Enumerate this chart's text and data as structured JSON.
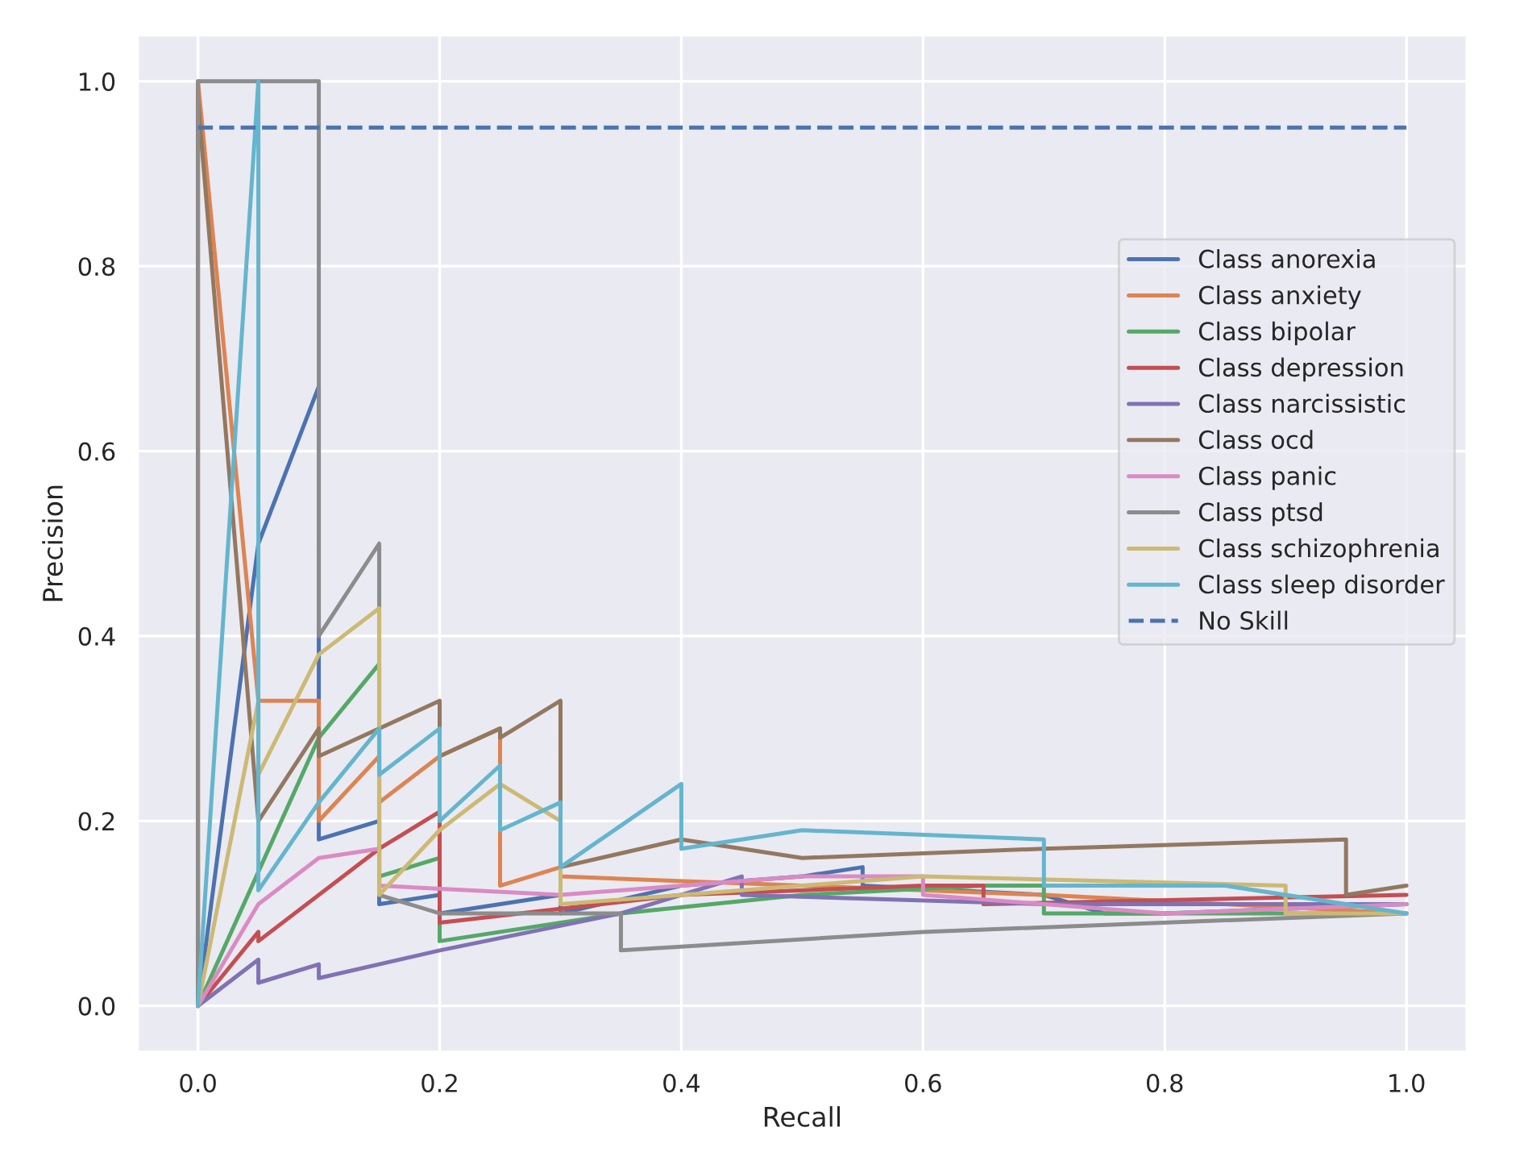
{
  "chart_data": {
    "type": "line",
    "xlabel": "Recall",
    "ylabel": "Precision",
    "xlim": [
      -0.05,
      1.05
    ],
    "ylim": [
      -0.05,
      1.05
    ],
    "xticks": [
      {
        "value": 0,
        "label": "0.0"
      },
      {
        "value": 0.2,
        "label": "0.2"
      },
      {
        "value": 0.4,
        "label": "0.4"
      },
      {
        "value": 0.6,
        "label": "0.6"
      },
      {
        "value": 0.8,
        "label": "0.8"
      },
      {
        "value": 1,
        "label": "1.0"
      }
    ],
    "yticks": [
      {
        "value": 0,
        "label": "0.0"
      },
      {
        "value": 0.2,
        "label": "0.2"
      },
      {
        "value": 0.4,
        "label": "0.4"
      },
      {
        "value": 0.6,
        "label": "0.6"
      },
      {
        "value": 0.8,
        "label": "0.8"
      },
      {
        "value": 1,
        "label": "1.0"
      }
    ],
    "grid": true,
    "legend": "right",
    "marker": "none",
    "series": [
      {
        "name": "Class anorexia",
        "color": "#4c72b0",
        "x": [
          0,
          0.05,
          0.1,
          0.1,
          0.15,
          0.15,
          0.2,
          0.2,
          0.3,
          0.3,
          0.4,
          0.5,
          0.55,
          0.55,
          0.7,
          0.75,
          0.8,
          1.0
        ],
        "values": [
          0,
          0.5,
          0.67,
          0.18,
          0.2,
          0.11,
          0.12,
          0.1,
          0.12,
          0.1,
          0.13,
          0.14,
          0.15,
          0.13,
          0.12,
          0.1,
          0.1,
          0.11
        ]
      },
      {
        "name": "Class anxiety",
        "color": "#dd8452",
        "x": [
          0,
          0,
          0.05,
          0.1,
          0.1,
          0.15,
          0.15,
          0.2,
          0.25,
          0.25,
          0.3,
          0.3,
          0.5,
          0.7,
          1.0
        ],
        "values": [
          0,
          1.0,
          0.33,
          0.33,
          0.2,
          0.27,
          0.22,
          0.27,
          0.3,
          0.13,
          0.15,
          0.14,
          0.13,
          0.12,
          0.1
        ]
      },
      {
        "name": "Class bipolar",
        "color": "#55a868",
        "x": [
          0,
          0.1,
          0.15,
          0.15,
          0.2,
          0.2,
          0.35,
          0.5,
          0.65,
          0.7,
          0.7,
          1.0
        ],
        "values": [
          0,
          0.29,
          0.37,
          0.14,
          0.16,
          0.07,
          0.1,
          0.12,
          0.13,
          0.13,
          0.1,
          0.1
        ]
      },
      {
        "name": "Class depression",
        "color": "#c44e52",
        "x": [
          0,
          0.05,
          0.05,
          0.15,
          0.2,
          0.2,
          0.4,
          0.6,
          0.65,
          0.65,
          1.0
        ],
        "values": [
          0,
          0.08,
          0.07,
          0.17,
          0.21,
          0.09,
          0.12,
          0.13,
          0.13,
          0.11,
          0.12
        ]
      },
      {
        "name": "Class narcissistic",
        "color": "#8172b3",
        "x": [
          0,
          0.05,
          0.05,
          0.1,
          0.1,
          0.2,
          0.35,
          0.45,
          0.45,
          0.7,
          1.0
        ],
        "values": [
          0,
          0.05,
          0.025,
          0.045,
          0.03,
          0.06,
          0.1,
          0.14,
          0.12,
          0.11,
          0.11
        ]
      },
      {
        "name": "Class ocd",
        "color": "#937860",
        "x": [
          0,
          0,
          0.05,
          0.1,
          0.1,
          0.2,
          0.2,
          0.25,
          0.25,
          0.3,
          0.3,
          0.4,
          0.5,
          0.7,
          0.95,
          0.95,
          1.0
        ],
        "values": [
          0,
          0.98,
          0.2,
          0.3,
          0.27,
          0.33,
          0.27,
          0.3,
          0.29,
          0.33,
          0.15,
          0.18,
          0.16,
          0.17,
          0.18,
          0.12,
          0.13
        ]
      },
      {
        "name": "Class panic",
        "color": "#da8bc3",
        "x": [
          0,
          0.05,
          0.1,
          0.15,
          0.15,
          0.3,
          0.5,
          0.6,
          0.6,
          0.8,
          1.0
        ],
        "values": [
          0,
          0.11,
          0.16,
          0.17,
          0.13,
          0.12,
          0.14,
          0.14,
          0.12,
          0.1,
          0.11
        ]
      },
      {
        "name": "Class ptsd",
        "color": "#8c8c8c",
        "x": [
          0,
          0,
          0.1,
          0.1,
          0.15,
          0.15,
          0.2,
          0.35,
          0.35,
          0.6,
          1.0
        ],
        "values": [
          0,
          1.0,
          1.0,
          0.4,
          0.5,
          0.12,
          0.1,
          0.1,
          0.06,
          0.08,
          0.1
        ]
      },
      {
        "name": "Class schizophrenia",
        "color": "#ccb974",
        "x": [
          0,
          0.05,
          0.05,
          0.1,
          0.15,
          0.15,
          0.2,
          0.25,
          0.3,
          0.3,
          0.6,
          0.9,
          0.9,
          1.0
        ],
        "values": [
          0,
          0.33,
          0.25,
          0.38,
          0.43,
          0.12,
          0.19,
          0.24,
          0.2,
          0.11,
          0.14,
          0.13,
          0.1,
          0.1
        ]
      },
      {
        "name": "Class sleep disorder",
        "color": "#64b5cd",
        "x": [
          0,
          0.05,
          0.05,
          0.1,
          0.15,
          0.15,
          0.2,
          0.2,
          0.25,
          0.25,
          0.3,
          0.3,
          0.4,
          0.4,
          0.5,
          0.7,
          0.7,
          0.85,
          1.0
        ],
        "values": [
          0,
          1.0,
          0.125,
          0.22,
          0.3,
          0.25,
          0.3,
          0.2,
          0.26,
          0.19,
          0.22,
          0.15,
          0.24,
          0.17,
          0.19,
          0.18,
          0.13,
          0.13,
          0.1
        ]
      },
      {
        "name": "No Skill",
        "color": "#4c72b0",
        "line_style": "dashed",
        "x": [
          0,
          1.0
        ],
        "values": [
          0.95,
          0.95
        ]
      }
    ]
  }
}
